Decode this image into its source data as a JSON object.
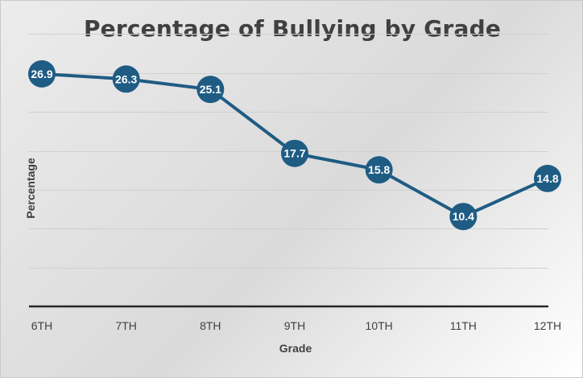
{
  "chart_data": {
    "type": "line",
    "title": "Percentage of Bullying by Grade",
    "xlabel": "Grade",
    "ylabel": "Percentage",
    "categories": [
      "6TH",
      "7TH",
      "8TH",
      "9TH",
      "10TH",
      "11TH",
      "12TH"
    ],
    "values": [
      26.9,
      26.3,
      25.1,
      17.7,
      15.8,
      10.4,
      14.8
    ],
    "data_labels": [
      "26.9",
      "26.3",
      "25.1",
      "17.7",
      "15.8",
      "10.4",
      "14.8"
    ],
    "ylim": [
      0,
      32
    ],
    "grid": true,
    "legend": "none",
    "colors": {
      "line": "#1f5c84",
      "marker": "#1f5c84",
      "gridline": "#d0d0d0",
      "axis": "#262626"
    }
  }
}
